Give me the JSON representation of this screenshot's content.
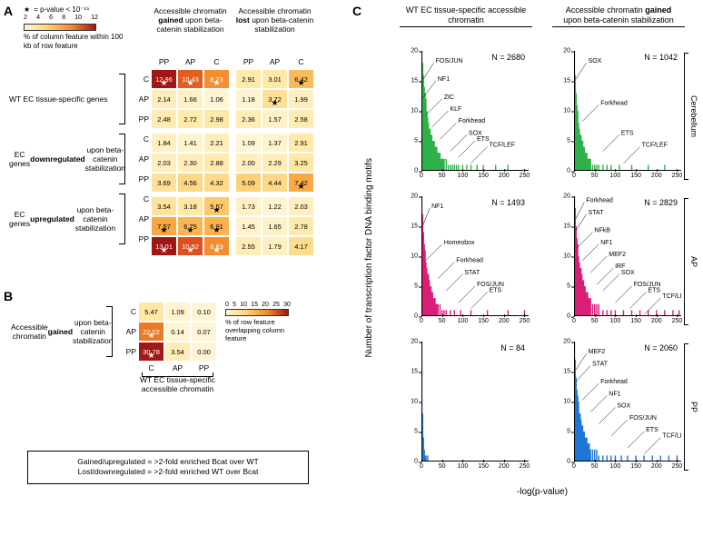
{
  "panels": {
    "A": "A",
    "B": "B",
    "C": "C"
  },
  "A": {
    "legend": {
      "startext": "= p-value < 10⁻¹⁵",
      "ticks": [
        "2",
        "4",
        "6",
        "8",
        "10",
        "12"
      ],
      "desc": "% of column feature within 100 kb of row feature"
    },
    "colheads_gained": "Accessible chromatin gained upon beta-catenin stabilization",
    "colheads_lost": "Accessible chromatin lost upon beta-catenin stabilization",
    "subcols": [
      "PP",
      "AP",
      "C",
      "PP",
      "AP",
      "C"
    ],
    "rowgroups": [
      "WT EC tissue-specific genes",
      "EC genes downregulated upon beta-catenin stabilization",
      "EC genes upregulated upon beta-catenin stabilization"
    ],
    "rowsubs": [
      "C",
      "AP",
      "PP",
      "C",
      "AP",
      "PP",
      "C",
      "AP",
      "PP"
    ],
    "cells": [
      [
        {
          "v": "12.96",
          "s": 1
        },
        {
          "v": "10.43",
          "s": 1
        },
        {
          "v": "8.73",
          "s": 1
        },
        {
          "v": "2.91"
        },
        {
          "v": "3.01"
        },
        {
          "v": "6.42",
          "s": 1
        }
      ],
      [
        {
          "v": "2.14"
        },
        {
          "v": "1.66"
        },
        {
          "v": "1.06"
        },
        {
          "v": "1.18"
        },
        {
          "v": "3.72",
          "s": 1
        },
        {
          "v": "1.99"
        }
      ],
      [
        {
          "v": "2.48"
        },
        {
          "v": "2.72"
        },
        {
          "v": "2.98"
        },
        {
          "v": "2.36"
        },
        {
          "v": "1.57"
        },
        {
          "v": "2.58"
        }
      ],
      [
        {
          "v": "1.84"
        },
        {
          "v": "1.41"
        },
        {
          "v": "2.21"
        },
        {
          "v": "1.09"
        },
        {
          "v": "1.37"
        },
        {
          "v": "2.91"
        }
      ],
      [
        {
          "v": "2.03"
        },
        {
          "v": "2.30"
        },
        {
          "v": "2.88"
        },
        {
          "v": "2.00"
        },
        {
          "v": "2.29"
        },
        {
          "v": "3.25"
        }
      ],
      [
        {
          "v": "3.69"
        },
        {
          "v": "4.56"
        },
        {
          "v": "4.32"
        },
        {
          "v": "5.09"
        },
        {
          "v": "4.44"
        },
        {
          "v": "7.42",
          "s": 1
        }
      ],
      [
        {
          "v": "3.54"
        },
        {
          "v": "3.18"
        },
        {
          "v": "5.57",
          "s": 1
        },
        {
          "v": "1.73"
        },
        {
          "v": "1.22"
        },
        {
          "v": "2.03"
        }
      ],
      [
        {
          "v": "7.57",
          "s": 1
        },
        {
          "v": "6.75",
          "s": 1
        },
        {
          "v": "6.91",
          "s": 1
        },
        {
          "v": "1.45"
        },
        {
          "v": "1.65"
        },
        {
          "v": "2.78"
        }
      ],
      [
        {
          "v": "13.01",
          "s": 1
        },
        {
          "v": "10.92",
          "s": 1
        },
        {
          "v": "8.83",
          "s": 1
        },
        {
          "v": "2.55"
        },
        {
          "v": "1.79"
        },
        {
          "v": "4.17"
        }
      ]
    ],
    "heat_min": 1.0,
    "heat_max": 13.0
  },
  "B": {
    "legend": {
      "ticks": [
        "0",
        "5",
        "10",
        "15",
        "20",
        "25",
        "30"
      ],
      "desc": "% of row feature overlapping column feature"
    },
    "rowgroup": "Accessible chromatin gained upon beta-catenin stabilization",
    "rowsubs": [
      "C",
      "AP",
      "PP"
    ],
    "colsubs": [
      "C",
      "AP",
      "PP"
    ],
    "colgroup": "WT EC tissue-specific accessible chromatin",
    "cells": [
      [
        {
          "v": "5.47"
        },
        {
          "v": "1.09"
        },
        {
          "v": "0.10"
        }
      ],
      [
        {
          "v": "22.02",
          "s": 1
        },
        {
          "v": "0.14"
        },
        {
          "v": "0.07"
        }
      ],
      [
        {
          "v": "30.78",
          "s": 1
        },
        {
          "v": "3.54"
        },
        {
          "v": "0.00"
        }
      ]
    ],
    "heat_min": 0.0,
    "heat_max": 31.0
  },
  "defs": {
    "l1": "Gained/upregulated = >2-fold enriched Bcat over WT",
    "l2": "Lost/downregulated = >2-fold enriched WT over Bcat"
  },
  "C": {
    "col1": "WT EC tissue-specific accessible chromatin",
    "col2": "Accessible chromatin gained upon beta-catenin stabilization",
    "rownames": [
      "Cerebellum",
      "AP",
      "PP"
    ],
    "ylab": "Number of transcription factor DNA binding motifs",
    "xlab": "-log(p-value)",
    "ylim": [
      0,
      20
    ],
    "yticks": [
      0,
      5,
      10,
      15,
      20
    ],
    "xlim": [
      0,
      260
    ],
    "xticks": [
      0,
      50,
      100,
      150,
      200,
      250
    ],
    "colors": {
      "Cerebellum": "#2fb14a",
      "AP": "#d81e77",
      "PP": "#1f77d4"
    },
    "series": [
      {
        "row": "Cerebellum",
        "col": 0,
        "N": 2680,
        "bars": [
          [
            1,
            20
          ],
          [
            3,
            18
          ],
          [
            5,
            16
          ],
          [
            7,
            14
          ],
          [
            9,
            13
          ],
          [
            11,
            12
          ],
          [
            13,
            10
          ],
          [
            15,
            9
          ],
          [
            17,
            8
          ],
          [
            19,
            7
          ],
          [
            21,
            7
          ],
          [
            23,
            6
          ],
          [
            25,
            6
          ],
          [
            27,
            5
          ],
          [
            29,
            5
          ],
          [
            31,
            5
          ],
          [
            33,
            4
          ],
          [
            35,
            4
          ],
          [
            37,
            4
          ],
          [
            39,
            3
          ],
          [
            41,
            3
          ],
          [
            43,
            3
          ],
          [
            45,
            3
          ],
          [
            47,
            2
          ],
          [
            49,
            2
          ],
          [
            51,
            2
          ],
          [
            53,
            2
          ],
          [
            55,
            2
          ],
          [
            60,
            2
          ],
          [
            65,
            1
          ],
          [
            70,
            1
          ],
          [
            75,
            1
          ],
          [
            80,
            1
          ],
          [
            85,
            1
          ],
          [
            90,
            1
          ],
          [
            100,
            1
          ],
          [
            110,
            1
          ],
          [
            120,
            1
          ],
          [
            135,
            1
          ],
          [
            150,
            1
          ],
          [
            180,
            1
          ],
          [
            210,
            1
          ]
        ],
        "ann": [
          {
            "t": "FOS/JUN",
            "x": 30,
            "y": 18
          },
          {
            "t": "NF1",
            "x": 35,
            "y": 15
          },
          {
            "t": "ZIC",
            "x": 50,
            "y": 12
          },
          {
            "t": "KLF",
            "x": 65,
            "y": 10
          },
          {
            "t": "Forkhead",
            "x": 85,
            "y": 8
          },
          {
            "t": "SOX",
            "x": 110,
            "y": 6
          },
          {
            "t": "ETS",
            "x": 130,
            "y": 5
          },
          {
            "t": "TCF/LEF",
            "x": 160,
            "y": 4
          }
        ]
      },
      {
        "row": "Cerebellum",
        "col": 1,
        "N": 1042,
        "bars": [
          [
            1,
            20
          ],
          [
            3,
            16
          ],
          [
            5,
            13
          ],
          [
            7,
            11
          ],
          [
            9,
            10
          ],
          [
            11,
            8
          ],
          [
            13,
            7
          ],
          [
            15,
            6
          ],
          [
            17,
            6
          ],
          [
            19,
            5
          ],
          [
            21,
            5
          ],
          [
            23,
            4
          ],
          [
            25,
            4
          ],
          [
            27,
            3
          ],
          [
            29,
            3
          ],
          [
            31,
            3
          ],
          [
            33,
            2
          ],
          [
            35,
            2
          ],
          [
            37,
            2
          ],
          [
            40,
            2
          ],
          [
            45,
            1
          ],
          [
            50,
            1
          ],
          [
            55,
            1
          ],
          [
            60,
            1
          ],
          [
            70,
            1
          ],
          [
            80,
            1
          ],
          [
            90,
            1
          ],
          [
            110,
            1
          ],
          [
            140,
            1
          ],
          [
            180,
            1
          ],
          [
            220,
            1
          ]
        ],
        "ann": [
          {
            "t": "SOX",
            "x": 30,
            "y": 18
          },
          {
            "t": "Forkhead",
            "x": 60,
            "y": 11
          },
          {
            "t": "ETS",
            "x": 110,
            "y": 6
          },
          {
            "t": "TCF/LEF",
            "x": 160,
            "y": 4
          }
        ]
      },
      {
        "row": "AP",
        "col": 0,
        "N": 1493,
        "bars": [
          [
            1,
            20
          ],
          [
            3,
            17
          ],
          [
            5,
            14
          ],
          [
            7,
            12
          ],
          [
            9,
            11
          ],
          [
            11,
            9
          ],
          [
            13,
            8
          ],
          [
            15,
            7
          ],
          [
            17,
            7
          ],
          [
            19,
            6
          ],
          [
            21,
            5
          ],
          [
            23,
            5
          ],
          [
            25,
            4
          ],
          [
            27,
            4
          ],
          [
            29,
            3
          ],
          [
            31,
            3
          ],
          [
            33,
            3
          ],
          [
            35,
            2
          ],
          [
            37,
            2
          ],
          [
            40,
            2
          ],
          [
            45,
            2
          ],
          [
            50,
            1
          ],
          [
            55,
            1
          ],
          [
            60,
            1
          ],
          [
            70,
            1
          ],
          [
            80,
            1
          ],
          [
            95,
            1
          ],
          [
            120,
            1
          ],
          [
            160,
            1
          ],
          [
            210,
            1
          ],
          [
            250,
            1
          ]
        ],
        "ann": [
          {
            "t": "NF1",
            "x": 20,
            "y": 18
          },
          {
            "t": "Homeobox",
            "x": 50,
            "y": 12
          },
          {
            "t": "Forkhead",
            "x": 80,
            "y": 9
          },
          {
            "t": "STAT",
            "x": 100,
            "y": 7
          },
          {
            "t": "FOS/JUN",
            "x": 130,
            "y": 5
          },
          {
            "t": "ETS",
            "x": 160,
            "y": 4
          }
        ]
      },
      {
        "row": "AP",
        "col": 1,
        "N": 2829,
        "bars": [
          [
            1,
            20
          ],
          [
            3,
            18
          ],
          [
            5,
            15
          ],
          [
            7,
            13
          ],
          [
            9,
            12
          ],
          [
            11,
            10
          ],
          [
            13,
            9
          ],
          [
            15,
            8
          ],
          [
            17,
            8
          ],
          [
            19,
            7
          ],
          [
            21,
            6
          ],
          [
            23,
            6
          ],
          [
            25,
            5
          ],
          [
            27,
            5
          ],
          [
            29,
            4
          ],
          [
            31,
            4
          ],
          [
            33,
            4
          ],
          [
            35,
            3
          ],
          [
            37,
            3
          ],
          [
            40,
            3
          ],
          [
            45,
            2
          ],
          [
            50,
            2
          ],
          [
            55,
            2
          ],
          [
            60,
            2
          ],
          [
            70,
            1
          ],
          [
            80,
            1
          ],
          [
            90,
            1
          ],
          [
            100,
            1
          ],
          [
            120,
            1
          ],
          [
            140,
            1
          ],
          [
            160,
            1
          ],
          [
            180,
            1
          ],
          [
            200,
            1
          ],
          [
            220,
            1
          ],
          [
            240,
            1
          ],
          [
            255,
            1
          ]
        ],
        "ann": [
          {
            "t": "Forkhead",
            "x": 25,
            "y": 19
          },
          {
            "t": "STAT",
            "x": 30,
            "y": 17
          },
          {
            "t": "NFkB",
            "x": 45,
            "y": 14
          },
          {
            "t": "NF1",
            "x": 60,
            "y": 12
          },
          {
            "t": "MEF2",
            "x": 80,
            "y": 10
          },
          {
            "t": "IRF",
            "x": 95,
            "y": 8
          },
          {
            "t": "SOX",
            "x": 110,
            "y": 7
          },
          {
            "t": "FOS/JUN",
            "x": 140,
            "y": 5
          },
          {
            "t": "ETS",
            "x": 175,
            "y": 4
          },
          {
            "t": "TCF/LEF",
            "x": 210,
            "y": 3
          }
        ]
      },
      {
        "row": "PP",
        "col": 0,
        "N": 84,
        "bars": [
          [
            1,
            20
          ],
          [
            3,
            8
          ],
          [
            5,
            4
          ],
          [
            7,
            2
          ],
          [
            9,
            1
          ],
          [
            11,
            1
          ],
          [
            15,
            1
          ]
        ],
        "ann": []
      },
      {
        "row": "PP",
        "col": 1,
        "N": 2060,
        "bars": [
          [
            1,
            20
          ],
          [
            3,
            17
          ],
          [
            5,
            14
          ],
          [
            7,
            12
          ],
          [
            9,
            11
          ],
          [
            11,
            10
          ],
          [
            13,
            8
          ],
          [
            15,
            8
          ],
          [
            17,
            7
          ],
          [
            19,
            6
          ],
          [
            21,
            6
          ],
          [
            23,
            5
          ],
          [
            25,
            5
          ],
          [
            27,
            4
          ],
          [
            29,
            4
          ],
          [
            31,
            4
          ],
          [
            33,
            3
          ],
          [
            35,
            3
          ],
          [
            37,
            3
          ],
          [
            40,
            2
          ],
          [
            45,
            2
          ],
          [
            50,
            2
          ],
          [
            55,
            2
          ],
          [
            60,
            1
          ],
          [
            70,
            1
          ],
          [
            80,
            1
          ],
          [
            90,
            1
          ],
          [
            100,
            1
          ],
          [
            115,
            1
          ],
          [
            130,
            1
          ],
          [
            150,
            1
          ],
          [
            170,
            1
          ],
          [
            190,
            1
          ],
          [
            210,
            1
          ],
          [
            230,
            1
          ],
          [
            250,
            1
          ]
        ],
        "ann": [
          {
            "t": "MEF2",
            "x": 30,
            "y": 18
          },
          {
            "t": "STAT",
            "x": 40,
            "y": 16
          },
          {
            "t": "Forkhead",
            "x": 60,
            "y": 13
          },
          {
            "t": "NF1",
            "x": 80,
            "y": 11
          },
          {
            "t": "SOX",
            "x": 100,
            "y": 9
          },
          {
            "t": "FOS/JUN",
            "x": 130,
            "y": 7
          },
          {
            "t": "ETS",
            "x": 170,
            "y": 5
          },
          {
            "t": "TCF/LEF",
            "x": 210,
            "y": 4
          }
        ]
      }
    ]
  },
  "heat_palette": [
    "#fff5d6",
    "#ffe9a8",
    "#fdd27a",
    "#fbb24e",
    "#f28a2b",
    "#d94e1f",
    "#a01616"
  ]
}
